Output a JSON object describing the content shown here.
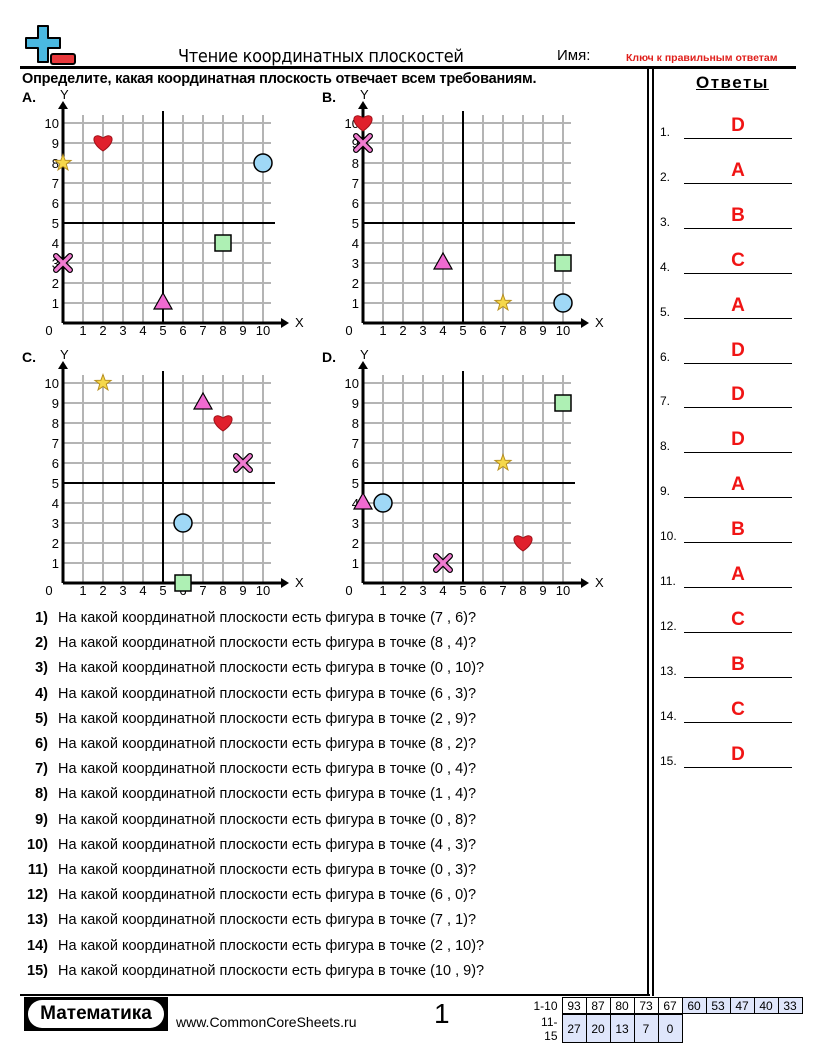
{
  "header": {
    "title": "Чтение координатных плоскостей",
    "name_label": "Имя:",
    "answer_key": "Ключ к правильным ответам",
    "instructions": "Определите, какая координатная плоскость отвечает всем требованиям."
  },
  "answers": {
    "title": "Ответы",
    "items": [
      {
        "n": "1.",
        "v": "D"
      },
      {
        "n": "2.",
        "v": "A"
      },
      {
        "n": "3.",
        "v": "B"
      },
      {
        "n": "4.",
        "v": "C"
      },
      {
        "n": "5.",
        "v": "A"
      },
      {
        "n": "6.",
        "v": "D"
      },
      {
        "n": "7.",
        "v": "D"
      },
      {
        "n": "8.",
        "v": "D"
      },
      {
        "n": "9.",
        "v": "A"
      },
      {
        "n": "10.",
        "v": "B"
      },
      {
        "n": "11.",
        "v": "A"
      },
      {
        "n": "12.",
        "v": "C"
      },
      {
        "n": "13.",
        "v": "B"
      },
      {
        "n": "14.",
        "v": "C"
      },
      {
        "n": "15.",
        "v": "D"
      }
    ]
  },
  "graphs": [
    {
      "label": "A.",
      "x_label": "X",
      "y_label": "Y",
      "ticks": [
        "0",
        "1",
        "2",
        "3",
        "4",
        "5",
        "6",
        "7",
        "8",
        "9",
        "10"
      ],
      "shapes": [
        {
          "type": "heart",
          "x": 2,
          "y": 9
        },
        {
          "type": "star",
          "x": 0,
          "y": 8
        },
        {
          "type": "circle",
          "x": 10,
          "y": 8
        },
        {
          "type": "square",
          "x": 8,
          "y": 4
        },
        {
          "type": "cross",
          "x": 0,
          "y": 3
        },
        {
          "type": "triangle",
          "x": 5,
          "y": 1
        }
      ]
    },
    {
      "label": "B.",
      "x_label": "X",
      "y_label": "Y",
      "ticks": [
        "0",
        "1",
        "2",
        "3",
        "4",
        "5",
        "6",
        "7",
        "8",
        "9",
        "10"
      ],
      "shapes": [
        {
          "type": "heart",
          "x": 0,
          "y": 10
        },
        {
          "type": "cross",
          "x": 0,
          "y": 9
        },
        {
          "type": "triangle",
          "x": 4,
          "y": 3
        },
        {
          "type": "square",
          "x": 10,
          "y": 3
        },
        {
          "type": "star",
          "x": 7,
          "y": 1
        },
        {
          "type": "circle",
          "x": 10,
          "y": 1
        }
      ]
    },
    {
      "label": "C.",
      "x_label": "X",
      "y_label": "Y",
      "ticks": [
        "0",
        "1",
        "2",
        "3",
        "4",
        "5",
        "6",
        "7",
        "8",
        "9",
        "10"
      ],
      "shapes": [
        {
          "type": "star",
          "x": 2,
          "y": 10
        },
        {
          "type": "triangle",
          "x": 7,
          "y": 9
        },
        {
          "type": "heart",
          "x": 8,
          "y": 8
        },
        {
          "type": "cross",
          "x": 9,
          "y": 6
        },
        {
          "type": "circle",
          "x": 6,
          "y": 3
        },
        {
          "type": "square",
          "x": 6,
          "y": 0
        }
      ]
    },
    {
      "label": "D.",
      "x_label": "X",
      "y_label": "Y",
      "ticks": [
        "0",
        "1",
        "2",
        "3",
        "4",
        "5",
        "6",
        "7",
        "8",
        "9",
        "10"
      ],
      "shapes": [
        {
          "type": "square",
          "x": 10,
          "y": 9
        },
        {
          "type": "star",
          "x": 7,
          "y": 6
        },
        {
          "type": "triangle",
          "x": 0,
          "y": 4
        },
        {
          "type": "circle",
          "x": 1,
          "y": 4
        },
        {
          "type": "heart",
          "x": 8,
          "y": 2
        },
        {
          "type": "cross",
          "x": 4,
          "y": 1
        }
      ]
    }
  ],
  "shape_colors": {
    "heart": "#e0202c",
    "star": "#f6d84a",
    "circle": "#9fd8f6",
    "square": "#aef0b4",
    "cross": "#f07ad0",
    "triangle": "#f06ad0"
  },
  "questions": [
    {
      "n": "1)",
      "t": "На какой координатной плоскости есть фигура в точке (7 , 6)?"
    },
    {
      "n": "2)",
      "t": "На какой координатной плоскости есть фигура в точке (8 , 4)?"
    },
    {
      "n": "3)",
      "t": "На какой координатной плоскости есть фигура в точке (0 , 10)?"
    },
    {
      "n": "4)",
      "t": "На какой координатной плоскости есть фигура в точке (6 , 3)?"
    },
    {
      "n": "5)",
      "t": "На какой координатной плоскости есть фигура в точке (2 , 9)?"
    },
    {
      "n": "6)",
      "t": "На какой координатной плоскости есть фигура в точке (8 , 2)?"
    },
    {
      "n": "7)",
      "t": "На какой координатной плоскости есть фигура в точке (0 , 4)?"
    },
    {
      "n": "8)",
      "t": "На какой координатной плоскости есть фигура в точке (1 , 4)?"
    },
    {
      "n": "9)",
      "t": "На какой координатной плоскости есть фигура в точке (0 , 8)?"
    },
    {
      "n": "10)",
      "t": "На какой координатной плоскости есть фигура в точке (4 , 3)?"
    },
    {
      "n": "11)",
      "t": "На какой координатной плоскости есть фигура в точке (0 , 3)?"
    },
    {
      "n": "12)",
      "t": "На какой координатной плоскости есть фигура в точке (6 , 0)?"
    },
    {
      "n": "13)",
      "t": "На какой координатной плоскости есть фигура в точке (7 , 1)?"
    },
    {
      "n": "14)",
      "t": "На какой координатной плоскости есть фигура в точке (2 , 10)?"
    },
    {
      "n": "15)",
      "t": "На какой координатной плоскости есть фигура в точке (10 , 9)?"
    }
  ],
  "footer": {
    "brand": "Математика",
    "site": "www.CommonCoreSheets.ru",
    "page": "1",
    "score_rows": [
      {
        "label": "1-10",
        "values": [
          "93",
          "87",
          "80",
          "73",
          "67",
          "60",
          "53",
          "47",
          "40",
          "33"
        ]
      },
      {
        "label": "11-15",
        "values": [
          "27",
          "20",
          "13",
          "7",
          "0"
        ]
      }
    ]
  }
}
